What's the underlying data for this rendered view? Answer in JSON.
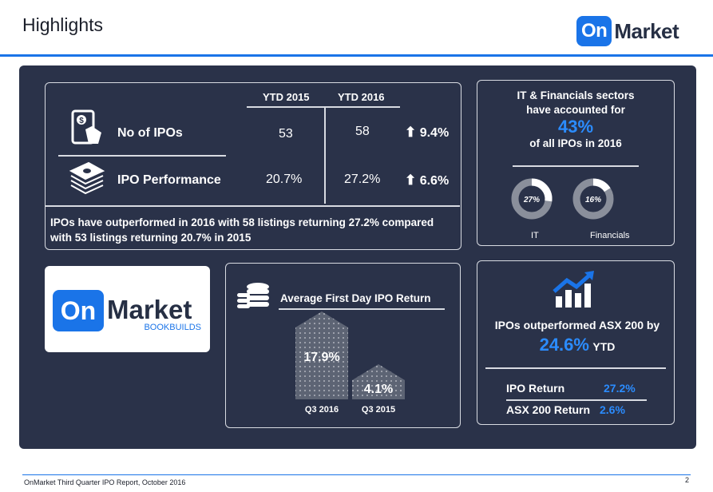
{
  "header": {
    "title": "Highlights",
    "brand_on": "On",
    "brand_market": "Market"
  },
  "stats": {
    "col_ytd_2015": "YTD 2015",
    "col_ytd_2016": "YTD 2016",
    "rows": [
      {
        "label": "No of IPOs",
        "ytd_2015": "53",
        "ytd_2016": "58",
        "arrow": "⬆",
        "change": "9.4%",
        "icon": "mobile-payment-icon"
      },
      {
        "label": "IPO Performance",
        "ytd_2015": "20.7%",
        "ytd_2016": "27.2%",
        "arrow": "⬆",
        "change": "6.6%",
        "icon": "cash-stack-icon"
      }
    ],
    "note": "IPOs have outperformed in 2016 with 58 listings returning 27.2% compared with 53 listings returning 20.7% in 2015"
  },
  "sectors": {
    "line1": "IT & Financials sectors",
    "line2": "have accounted for",
    "pct": "43%",
    "line3": "of all IPOs in 2016",
    "donuts": [
      {
        "value": "27%",
        "fraction": 0.27,
        "label": "IT"
      },
      {
        "value": "16%",
        "fraction": 0.16,
        "label": "Financials"
      }
    ]
  },
  "logo_card": {
    "on": "On",
    "market": "Market",
    "sub": "BOOKBUILDS"
  },
  "first_day": {
    "title": "Average First Day IPO Return",
    "icon": "coin-stack-icon",
    "bars": [
      {
        "value": "17.9%",
        "num": 17.9,
        "label": "Q3 2016"
      },
      {
        "value": "4.1%",
        "num": 4.1,
        "label": "Q3 2015"
      }
    ]
  },
  "asx": {
    "icon": "growth-chart-icon",
    "line1": "IPOs outperformed ASX 200 by",
    "pct": "24.6%",
    "ytd": "YTD",
    "rows": [
      {
        "label": "IPO Return",
        "value": "27.2%"
      },
      {
        "label": "ASX 200 Return",
        "value": "2.6%"
      }
    ]
  },
  "footer": {
    "text": "OnMarket Third Quarter IPO Report, October 2016",
    "page": "2"
  },
  "colors": {
    "navy": "#2a3249",
    "accent": "#1a74e8",
    "highlight": "#2b8cff"
  }
}
